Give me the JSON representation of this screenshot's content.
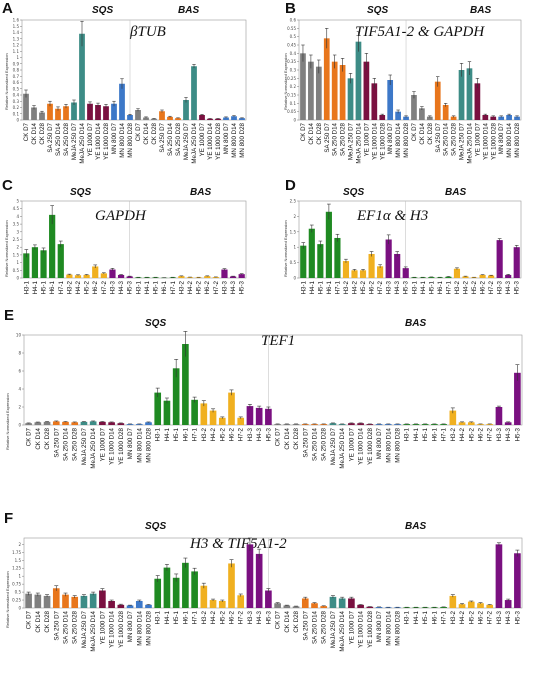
{
  "chart_data": [
    {
      "id": "A",
      "type": "bar",
      "panel_label": "A",
      "title": "βTUB",
      "group_labels": [
        "SQS",
        "BAS"
      ],
      "ylabel": "Relative Normalized Expression",
      "ylim": [
        0,
        1.6
      ],
      "yticks": [
        0,
        0.1,
        0.2,
        0.3,
        0.4,
        0.5,
        0.6,
        0.7,
        0.8,
        0.9,
        1.0,
        1.1,
        1.2,
        1.3,
        1.4,
        1.5,
        1.6
      ],
      "categories": [
        "CK D7",
        "CK D14",
        "CK D28",
        "SA 250 D7",
        "SA 250 D14",
        "SA 250 D28",
        "MeJA 250 D7",
        "MeJA 250 D14",
        "YE 1000 D7",
        "YE 1000 D14",
        "YE 1000 D28",
        "MN 800 D7",
        "MN 800 D14",
        "MN 800 D28",
        "CK D7",
        "CK D14",
        "CK D28",
        "SA 250 D7",
        "SA 250 D14",
        "SA 250 D28",
        "MeJA 250 D7",
        "MeJA 250 D14",
        "YE 1000 D7",
        "YE 1000 D14",
        "YE 1000 D28",
        "MN 800 D7",
        "MN 800 D14",
        "MN 800 D28"
      ],
      "values": [
        0.42,
        0.2,
        0.12,
        0.26,
        0.18,
        0.22,
        0.28,
        1.38,
        0.26,
        0.24,
        0.22,
        0.26,
        0.58,
        0.08,
        0.16,
        0.04,
        0.02,
        0.14,
        0.05,
        0.03,
        0.32,
        0.86,
        0.08,
        0.02,
        0.02,
        0.04,
        0.06,
        0.03
      ],
      "errors": [
        0.06,
        0.03,
        0.02,
        0.04,
        0.03,
        0.03,
        0.04,
        0.2,
        0.03,
        0.03,
        0.03,
        0.04,
        0.08,
        0.01,
        0.02,
        0.01,
        0.005,
        0.02,
        0.01,
        0.005,
        0.04,
        0.03,
        0.01,
        0.005,
        0.005,
        0.01,
        0.01,
        0.005
      ],
      "colors": [
        "#808080",
        "#808080",
        "#808080",
        "#e8761c",
        "#e8761c",
        "#e8761c",
        "#3d8c86",
        "#3d8c86",
        "#7a1040",
        "#7a1040",
        "#7a1040",
        "#3d78c8",
        "#3d78c8",
        "#3d78c8",
        "#808080",
        "#808080",
        "#808080",
        "#e8761c",
        "#e8761c",
        "#e8761c",
        "#3d8c86",
        "#3d8c86",
        "#7a1040",
        "#7a1040",
        "#7a1040",
        "#3d78c8",
        "#3d78c8",
        "#3d78c8"
      ]
    },
    {
      "id": "B",
      "type": "bar",
      "panel_label": "B",
      "title": "TIF5A1-2 & GAPDH",
      "group_labels": [
        "SQS",
        "BAS"
      ],
      "ylabel": "Relative Normalized Expression",
      "ylim": [
        0,
        0.6
      ],
      "yticks": [
        0,
        0.05,
        0.1,
        0.15,
        0.2,
        0.25,
        0.3,
        0.35,
        0.4,
        0.45,
        0.5,
        0.55,
        0.6
      ],
      "categories": [
        "CK D7",
        "CK D14",
        "CK D28",
        "SA 250 D7",
        "SA 250 D14",
        "SA 250 D28",
        "MeJA 250 D7",
        "MeJA 250 D14",
        "YE 1000 D7",
        "YE 1000 D14",
        "YE 1000 D28",
        "MN 800 D7",
        "MN 800 D14",
        "MN 800 D28",
        "CK D7",
        "CK D14",
        "CK D28",
        "SA 250 D7",
        "SA 250 D14",
        "SA 250 D28",
        "MeJA 250 D7",
        "MeJA 250 D14",
        "YE 1000 D7",
        "YE 1000 D14",
        "YE 1000 D28",
        "MN 800 D7",
        "MN 800 D14",
        "MN 800 D28"
      ],
      "values": [
        0.4,
        0.35,
        0.32,
        0.49,
        0.35,
        0.33,
        0.25,
        0.47,
        0.35,
        0.22,
        0.03,
        0.24,
        0.05,
        0.02,
        0.15,
        0.07,
        0.02,
        0.23,
        0.09,
        0.02,
        0.3,
        0.31,
        0.22,
        0.03,
        0.02,
        0.02,
        0.03,
        0.02
      ],
      "errors": [
        0.05,
        0.04,
        0.04,
        0.06,
        0.04,
        0.04,
        0.03,
        0.06,
        0.05,
        0.03,
        0.005,
        0.03,
        0.01,
        0.005,
        0.02,
        0.01,
        0.005,
        0.03,
        0.01,
        0.005,
        0.04,
        0.04,
        0.03,
        0.005,
        0.005,
        0.005,
        0.005,
        0.005
      ],
      "colors": [
        "#808080",
        "#808080",
        "#808080",
        "#e8761c",
        "#e8761c",
        "#e8761c",
        "#3d8c86",
        "#3d8c86",
        "#7a1040",
        "#7a1040",
        "#7a1040",
        "#3d78c8",
        "#3d78c8",
        "#3d78c8",
        "#808080",
        "#808080",
        "#808080",
        "#e8761c",
        "#e8761c",
        "#e8761c",
        "#3d8c86",
        "#3d8c86",
        "#7a1040",
        "#7a1040",
        "#7a1040",
        "#3d78c8",
        "#3d78c8",
        "#3d78c8"
      ]
    },
    {
      "id": "C",
      "type": "bar",
      "panel_label": "C",
      "title": "GAPDH",
      "group_labels": [
        "SQS",
        "BAS"
      ],
      "ylabel": "Relative Normalized Expression",
      "ylim": [
        0,
        5
      ],
      "yticks": [
        0,
        0.5,
        1,
        1.5,
        2,
        2.5,
        3,
        3.5,
        4,
        4.5,
        5
      ],
      "categories": [
        "H3-1",
        "H4-1",
        "H5-1",
        "H6-1",
        "H7-1",
        "H3-2",
        "H4-2",
        "H5-2",
        "H6-2",
        "H7-2",
        "H3-3",
        "H4-3",
        "H5-3",
        "H3-1",
        "H4-1",
        "H5-1",
        "H6-1",
        "H7-1",
        "H3-2",
        "H4-2",
        "H5-2",
        "H6-2",
        "H7-2",
        "H3-3",
        "H4-3",
        "H5-3"
      ],
      "values": [
        1.6,
        2.0,
        1.8,
        4.1,
        2.2,
        0.22,
        0.18,
        0.2,
        0.75,
        0.3,
        0.55,
        0.2,
        0.1,
        0.04,
        0.04,
        0.04,
        0.02,
        0.04,
        0.12,
        0.05,
        0.04,
        0.12,
        0.06,
        0.55,
        0.1,
        0.25
      ],
      "errors": [
        0.25,
        0.15,
        0.15,
        0.6,
        0.2,
        0.03,
        0.03,
        0.03,
        0.1,
        0.04,
        0.08,
        0.03,
        0.02,
        0.01,
        0.01,
        0.01,
        0.005,
        0.01,
        0.02,
        0.01,
        0.01,
        0.02,
        0.01,
        0.06,
        0.02,
        0.03
      ],
      "colors": [
        "#1f8a22",
        "#1f8a22",
        "#1f8a22",
        "#1f8a22",
        "#1f8a22",
        "#f0b020",
        "#f0b020",
        "#f0b020",
        "#f0b020",
        "#f0b020",
        "#7a1080",
        "#7a1080",
        "#7a1080",
        "#1f8a22",
        "#1f8a22",
        "#1f8a22",
        "#1f8a22",
        "#1f8a22",
        "#f0b020",
        "#f0b020",
        "#f0b020",
        "#f0b020",
        "#f0b020",
        "#7a1080",
        "#7a1080",
        "#7a1080"
      ]
    },
    {
      "id": "D",
      "type": "bar",
      "panel_label": "D",
      "title": "EF1α & H3",
      "group_labels": [
        "SQS",
        "BAS"
      ],
      "ylabel": "Relative Normalized Expression",
      "ylim": [
        0,
        2.5
      ],
      "yticks": [
        0,
        0.5,
        1,
        1.5,
        2,
        2.5
      ],
      "categories": [
        "H3-1",
        "H4-1",
        "H5-1",
        "H6-1",
        "H7-1",
        "H3-2",
        "H4-2",
        "H5-2",
        "H6-2",
        "H7-2",
        "H3-3",
        "H4-3",
        "H5-3",
        "H3-1",
        "H4-1",
        "H5-1",
        "H6-1",
        "H7-1",
        "H3-2",
        "H4-2",
        "H5-2",
        "H6-2",
        "H7-2",
        "H3-3",
        "H4-3",
        "H5-3"
      ],
      "values": [
        1.05,
        1.6,
        1.1,
        2.15,
        1.3,
        0.55,
        0.25,
        0.25,
        0.78,
        0.38,
        1.25,
        0.78,
        0.32,
        0.02,
        0.02,
        0.03,
        0.02,
        0.04,
        0.3,
        0.05,
        0.02,
        0.1,
        0.08,
        1.23,
        0.1,
        1.0
      ],
      "errors": [
        0.1,
        0.12,
        0.1,
        0.25,
        0.12,
        0.06,
        0.03,
        0.03,
        0.08,
        0.05,
        0.15,
        0.08,
        0.04,
        0.005,
        0.005,
        0.005,
        0.005,
        0.01,
        0.03,
        0.01,
        0.005,
        0.01,
        0.01,
        0.05,
        0.02,
        0.06
      ],
      "colors": [
        "#1f8a22",
        "#1f8a22",
        "#1f8a22",
        "#1f8a22",
        "#1f8a22",
        "#f0b020",
        "#f0b020",
        "#f0b020",
        "#f0b020",
        "#f0b020",
        "#7a1080",
        "#7a1080",
        "#7a1080",
        "#1f8a22",
        "#1f8a22",
        "#1f8a22",
        "#1f8a22",
        "#1f8a22",
        "#f0b020",
        "#f0b020",
        "#f0b020",
        "#f0b020",
        "#f0b020",
        "#7a1080",
        "#7a1080",
        "#7a1080"
      ]
    },
    {
      "id": "E",
      "type": "bar",
      "panel_label": "E",
      "title": "TEF1",
      "group_labels": [
        "SQS",
        "BAS"
      ],
      "ylabel": "Relative Normalized Expression",
      "ylim": [
        0,
        10
      ],
      "yticks": [
        0,
        2,
        4,
        6,
        8,
        10
      ],
      "categories": [
        "CK D7",
        "CK D14",
        "CK D28",
        "SA 250 D7",
        "SA 250 D14",
        "SA 250 D28",
        "MeJA 250 D7",
        "MeJA 250 D14",
        "YE 1000 D7",
        "YE 1000 D14",
        "YE 1000 D28",
        "MN 800 D7",
        "MN 800 D14",
        "MN 800 D28",
        "H3-1",
        "H4-1",
        "H5-1",
        "H6-1",
        "H7-1",
        "H3-2",
        "H4-2",
        "H5-2",
        "H6-2",
        "H7-2",
        "H3-3",
        "H4-3",
        "H5-3",
        "CK D7",
        "CK D14",
        "CK D28",
        "SA 250 D7",
        "SA 250 D14",
        "SA 250 D28",
        "MeJA 250 D7",
        "MeJA 250 D14",
        "YE 1000 D7",
        "YE 1000 D14",
        "YE 1000 D28",
        "MN 800 D7",
        "MN 800 D14",
        "MN 800 D28",
        "H3-1",
        "H4-1",
        "H5-1",
        "H6-1",
        "H7-1",
        "H3-2",
        "H4-2",
        "H5-2",
        "H6-2",
        "H7-2",
        "H3-3",
        "H4-3",
        "H5-3"
      ],
      "values": [
        0.2,
        0.3,
        0.35,
        0.4,
        0.35,
        0.3,
        0.35,
        0.4,
        0.35,
        0.3,
        0.2,
        0.1,
        0.1,
        0.3,
        3.6,
        2.7,
        6.3,
        9.0,
        2.8,
        2.4,
        1.6,
        0.8,
        3.6,
        0.8,
        2.1,
        1.9,
        1.8,
        0.1,
        0.1,
        0.1,
        0.1,
        0.1,
        0.1,
        0.2,
        0.1,
        0.2,
        0.2,
        0.1,
        0.1,
        0.1,
        0.1,
        0.1,
        0.1,
        0.1,
        0.1,
        0.1,
        1.6,
        0.3,
        0.3,
        0.1,
        0.1,
        2.0,
        0.3,
        5.8
      ],
      "errors": [
        0.03,
        0.03,
        0.04,
        0.05,
        0.04,
        0.04,
        0.04,
        0.05,
        0.04,
        0.04,
        0.03,
        0.02,
        0.02,
        0.04,
        0.5,
        0.3,
        1.0,
        1.4,
        0.3,
        0.3,
        0.2,
        0.1,
        0.3,
        0.1,
        0.2,
        0.2,
        0.2,
        0.02,
        0.02,
        0.02,
        0.02,
        0.02,
        0.02,
        0.03,
        0.02,
        0.03,
        0.03,
        0.02,
        0.02,
        0.02,
        0.02,
        0.02,
        0.02,
        0.02,
        0.02,
        0.02,
        0.3,
        0.05,
        0.05,
        0.02,
        0.02,
        0.1,
        0.05,
        0.9
      ],
      "colors": [
        "#808080",
        "#808080",
        "#808080",
        "#e8761c",
        "#e8761c",
        "#e8761c",
        "#3d8c86",
        "#3d8c86",
        "#7a1040",
        "#7a1040",
        "#7a1040",
        "#3d78c8",
        "#3d78c8",
        "#3d78c8",
        "#1f8a22",
        "#1f8a22",
        "#1f8a22",
        "#1f8a22",
        "#1f8a22",
        "#f0b020",
        "#f0b020",
        "#f0b020",
        "#f0b020",
        "#f0b020",
        "#7a1080",
        "#7a1080",
        "#7a1080",
        "#808080",
        "#808080",
        "#808080",
        "#e8761c",
        "#e8761c",
        "#e8761c",
        "#3d8c86",
        "#3d8c86",
        "#7a1040",
        "#7a1040",
        "#7a1040",
        "#3d78c8",
        "#3d78c8",
        "#3d78c8",
        "#1f8a22",
        "#1f8a22",
        "#1f8a22",
        "#1f8a22",
        "#1f8a22",
        "#f0b020",
        "#f0b020",
        "#f0b020",
        "#f0b020",
        "#f0b020",
        "#7a1080",
        "#7a1080",
        "#7a1080"
      ]
    },
    {
      "id": "F",
      "type": "bar",
      "panel_label": "F",
      "title": "H3 & TIF5A1-2",
      "group_labels": [
        "SQS",
        "BAS"
      ],
      "ylabel": "Relative Normalized Expression",
      "ylim": [
        0,
        2.2
      ],
      "yticks": [
        0,
        0.25,
        0.5,
        0.75,
        1.0,
        1.25,
        1.5,
        1.75,
        2.0
      ],
      "categories": [
        "CK D7",
        "CK D14",
        "CK D28",
        "SA 250 D7",
        "SA 250 D14",
        "SA 250 D28",
        "MeJA 250 D7",
        "MeJA 250 D14",
        "YE 1000 D7",
        "YE 1000 D14",
        "YE 1000 D28",
        "MN 800 D7",
        "MN 800 D14",
        "MN 800 D28",
        "H3-1",
        "H4-1",
        "H5-1",
        "H6-1",
        "H7-1",
        "H3-2",
        "H4-2",
        "H5-2",
        "H6-2",
        "H7-2",
        "H3-3",
        "H4-3",
        "H5-3",
        "CK D7",
        "CK D14",
        "CK D28",
        "SA 250 D7",
        "SA 250 D14",
        "SA 250 D28",
        "MeJA 250 D7",
        "MeJA 250 D14",
        "YE 1000 D7",
        "YE 1000 D14",
        "YE 1000 D28",
        "MN 800 D7",
        "MN 800 D14",
        "MN 800 D28",
        "H3-1",
        "H4-1",
        "H5-1",
        "H6-1",
        "H7-1",
        "H3-2",
        "H4-2",
        "H5-2",
        "H6-2",
        "H7-2",
        "H3-3",
        "H4-3",
        "H5-3"
      ],
      "values": [
        0.45,
        0.42,
        0.38,
        0.62,
        0.42,
        0.35,
        0.38,
        0.45,
        0.55,
        0.22,
        0.1,
        0.08,
        0.22,
        0.1,
        0.92,
        1.27,
        0.95,
        1.42,
        1.15,
        0.7,
        0.25,
        0.22,
        1.4,
        0.4,
        2.0,
        1.7,
        0.55,
        0.15,
        0.08,
        0.05,
        0.3,
        0.15,
        0.06,
        0.35,
        0.3,
        0.3,
        0.1,
        0.04,
        0.03,
        0.02,
        0.02,
        0.02,
        0.02,
        0.02,
        0.02,
        0.03,
        0.38,
        0.12,
        0.2,
        0.15,
        0.1,
        2.0,
        0.25,
        1.72
      ],
      "errors": [
        0.05,
        0.05,
        0.04,
        0.08,
        0.05,
        0.04,
        0.04,
        0.05,
        0.06,
        0.03,
        0.02,
        0.01,
        0.03,
        0.01,
        0.1,
        0.1,
        0.12,
        0.15,
        0.1,
        0.08,
        0.03,
        0.03,
        0.12,
        0.04,
        0.2,
        0.15,
        0.06,
        0.02,
        0.01,
        0.01,
        0.04,
        0.02,
        0.01,
        0.04,
        0.04,
        0.04,
        0.01,
        0.005,
        0.005,
        0.005,
        0.005,
        0.005,
        0.005,
        0.005,
        0.005,
        0.005,
        0.04,
        0.02,
        0.02,
        0.02,
        0.01,
        0.05,
        0.03,
        0.1
      ],
      "colors": [
        "#808080",
        "#808080",
        "#808080",
        "#e8761c",
        "#e8761c",
        "#e8761c",
        "#3d8c86",
        "#3d8c86",
        "#7a1040",
        "#7a1040",
        "#7a1040",
        "#3d78c8",
        "#3d78c8",
        "#3d78c8",
        "#1f8a22",
        "#1f8a22",
        "#1f8a22",
        "#1f8a22",
        "#1f8a22",
        "#f0b020",
        "#f0b020",
        "#f0b020",
        "#f0b020",
        "#f0b020",
        "#7a1080",
        "#7a1080",
        "#7a1080",
        "#808080",
        "#808080",
        "#808080",
        "#e8761c",
        "#e8761c",
        "#e8761c",
        "#3d8c86",
        "#3d8c86",
        "#7a1040",
        "#7a1040",
        "#7a1040",
        "#3d78c8",
        "#3d78c8",
        "#3d78c8",
        "#1f8a22",
        "#1f8a22",
        "#1f8a22",
        "#1f8a22",
        "#1f8a22",
        "#f0b020",
        "#f0b020",
        "#f0b020",
        "#f0b020",
        "#f0b020",
        "#7a1080",
        "#7a1080",
        "#7a1080"
      ]
    }
  ]
}
